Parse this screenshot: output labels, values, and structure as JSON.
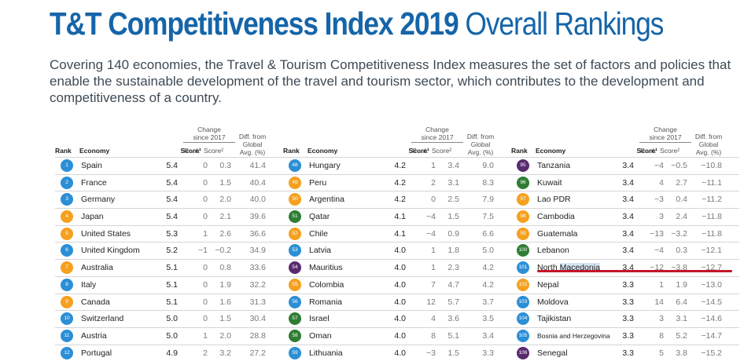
{
  "title": {
    "bold": "T&T Competitiveness Index 2019",
    "light": "Overall Rankings"
  },
  "intro": "Covering 140 economies, the Travel & Tourism Competitiveness Index measures the set of factors and policies that enable the sustainable development of the travel and tourism sector, which contributes to the development and competitiveness of a country.",
  "headers": {
    "rank": "Rank",
    "economy": "Economy",
    "score": "Score¹",
    "change_line1": "Change",
    "change_line2": "since 2017",
    "change_rank": "Rank",
    "change_score": "Score²",
    "diff_line1": "Diff. from",
    "diff_line2": "Global",
    "diff_line3": "Avg. (%)"
  },
  "colors": {
    "blue": "#2b8fd6",
    "orange": "#f5a01e",
    "green": "#2e7d32",
    "purple": "#5a2a6e",
    "title": "#1565a8",
    "marker": "#c4162a"
  },
  "columns": [
    {
      "rows": [
        {
          "rank": "1",
          "economy": "Spain",
          "score": "5.4",
          "chg_rank": "0",
          "chg_score": "0.3",
          "diff": "41.4",
          "color": "#2b8fd6"
        },
        {
          "rank": "2",
          "economy": "France",
          "score": "5.4",
          "chg_rank": "0",
          "chg_score": "1.5",
          "diff": "40.4",
          "color": "#2b8fd6"
        },
        {
          "rank": "3",
          "economy": "Germany",
          "score": "5.4",
          "chg_rank": "0",
          "chg_score": "2.0",
          "diff": "40.0",
          "color": "#2b8fd6"
        },
        {
          "rank": "4",
          "economy": "Japan",
          "score": "5.4",
          "chg_rank": "0",
          "chg_score": "2.1",
          "diff": "39.6",
          "color": "#f5a01e"
        },
        {
          "rank": "5",
          "economy": "United States",
          "score": "5.3",
          "chg_rank": "1",
          "chg_score": "2.6",
          "diff": "36.6",
          "color": "#f5a01e"
        },
        {
          "rank": "6",
          "economy": "United Kingdom",
          "score": "5.2",
          "chg_rank": "−1",
          "chg_score": "−0.2",
          "diff": "34.9",
          "color": "#2b8fd6"
        },
        {
          "rank": "7",
          "economy": "Australia",
          "score": "5.1",
          "chg_rank": "0",
          "chg_score": "0.8",
          "diff": "33.6",
          "color": "#f5a01e"
        },
        {
          "rank": "8",
          "economy": "Italy",
          "score": "5.1",
          "chg_rank": "0",
          "chg_score": "1.9",
          "diff": "32.2",
          "color": "#2b8fd6"
        },
        {
          "rank": "9",
          "economy": "Canada",
          "score": "5.1",
          "chg_rank": "0",
          "chg_score": "1.6",
          "diff": "31.3",
          "color": "#f5a01e"
        },
        {
          "rank": "10",
          "economy": "Switzerland",
          "score": "5.0",
          "chg_rank": "0",
          "chg_score": "1.5",
          "diff": "30.4",
          "color": "#2b8fd6"
        },
        {
          "rank": "11",
          "economy": "Austria",
          "score": "5.0",
          "chg_rank": "1",
          "chg_score": "2.0",
          "diff": "28.8",
          "color": "#2b8fd6"
        },
        {
          "rank": "12",
          "economy": "Portugal",
          "score": "4.9",
          "chg_rank": "2",
          "chg_score": "3.2",
          "diff": "27.2",
          "color": "#2b8fd6"
        }
      ]
    },
    {
      "rows": [
        {
          "rank": "48",
          "economy": "Hungary",
          "score": "4.2",
          "chg_rank": "1",
          "chg_score": "3.4",
          "diff": "9.0",
          "color": "#2b8fd6"
        },
        {
          "rank": "49",
          "economy": "Peru",
          "score": "4.2",
          "chg_rank": "2",
          "chg_score": "3.1",
          "diff": "8.3",
          "color": "#f5a01e"
        },
        {
          "rank": "50",
          "economy": "Argentina",
          "score": "4.2",
          "chg_rank": "0",
          "chg_score": "2.5",
          "diff": "7.9",
          "color": "#f5a01e"
        },
        {
          "rank": "51",
          "economy": "Qatar",
          "score": "4.1",
          "chg_rank": "−4",
          "chg_score": "1.5",
          "diff": "7.5",
          "color": "#2e7d32"
        },
        {
          "rank": "52",
          "economy": "Chile",
          "score": "4.1",
          "chg_rank": "−4",
          "chg_score": "0.9",
          "diff": "6.6",
          "color": "#f5a01e"
        },
        {
          "rank": "53",
          "economy": "Latvia",
          "score": "4.0",
          "chg_rank": "1",
          "chg_score": "1.8",
          "diff": "5.0",
          "color": "#2b8fd6"
        },
        {
          "rank": "54",
          "economy": "Mauritius",
          "score": "4.0",
          "chg_rank": "1",
          "chg_score": "2.3",
          "diff": "4.2",
          "color": "#5a2a6e"
        },
        {
          "rank": "55",
          "economy": "Colombia",
          "score": "4.0",
          "chg_rank": "7",
          "chg_score": "4.7",
          "diff": "4.2",
          "color": "#f5a01e"
        },
        {
          "rank": "56",
          "economy": "Romania",
          "score": "4.0",
          "chg_rank": "12",
          "chg_score": "5.7",
          "diff": "3.7",
          "color": "#2b8fd6"
        },
        {
          "rank": "57",
          "economy": "Israel",
          "score": "4.0",
          "chg_rank": "4",
          "chg_score": "3.6",
          "diff": "3.5",
          "color": "#2e7d32"
        },
        {
          "rank": "58",
          "economy": "Oman",
          "score": "4.0",
          "chg_rank": "8",
          "chg_score": "5.1",
          "diff": "3.4",
          "color": "#2e7d32"
        },
        {
          "rank": "59",
          "economy": "Lithuania",
          "score": "4.0",
          "chg_rank": "−3",
          "chg_score": "1.5",
          "diff": "3.3",
          "color": "#2b8fd6"
        }
      ]
    },
    {
      "rows": [
        {
          "rank": "95",
          "economy": "Tanzania",
          "score": "3.4",
          "chg_rank": "−4",
          "chg_score": "−0.5",
          "diff": "−10.8",
          "color": "#5a2a6e"
        },
        {
          "rank": "96",
          "economy": "Kuwait",
          "score": "3.4",
          "chg_rank": "4",
          "chg_score": "2.7",
          "diff": "−11.1",
          "color": "#2e7d32"
        },
        {
          "rank": "97",
          "economy": "Lao PDR",
          "score": "3.4",
          "chg_rank": "−3",
          "chg_score": "0.4",
          "diff": "−11.2",
          "color": "#f5a01e"
        },
        {
          "rank": "98",
          "economy": "Cambodia",
          "score": "3.4",
          "chg_rank": "3",
          "chg_score": "2.4",
          "diff": "−11.8",
          "color": "#f5a01e"
        },
        {
          "rank": "99",
          "economy": "Guatemala",
          "score": "3.4",
          "chg_rank": "−13",
          "chg_score": "−3.2",
          "diff": "−11.8",
          "color": "#f5a01e"
        },
        {
          "rank": "100",
          "economy": "Lebanon",
          "score": "3.4",
          "chg_rank": "−4",
          "chg_score": "0.3",
          "diff": "−12.1",
          "color": "#2e7d32"
        },
        {
          "rank": "101",
          "economy_prefix": "North ",
          "economy_highlight": "Macedonia",
          "economy": "",
          "score": "3.4",
          "chg_rank": "−12",
          "chg_score": "−3.8",
          "diff": "−12.7",
          "color": "#2b8fd6"
        },
        {
          "rank": "102",
          "economy": "Nepal",
          "score": "3.3",
          "chg_rank": "1",
          "chg_score": "1.9",
          "diff": "−13.0",
          "color": "#f5a01e"
        },
        {
          "rank": "103",
          "economy": "Moldova",
          "score": "3.3",
          "chg_rank": "14",
          "chg_score": "6.4",
          "diff": "−14.5",
          "color": "#2b8fd6"
        },
        {
          "rank": "104",
          "economy": "Tajikistan",
          "score": "3.3",
          "chg_rank": "3",
          "chg_score": "3.1",
          "diff": "−14.6",
          "color": "#2b8fd6"
        },
        {
          "rank": "105",
          "economy": "Bosnia and Herzegovina",
          "score": "3.3",
          "chg_rank": "8",
          "chg_score": "5.2",
          "diff": "−14.7",
          "color": "#2b8fd6",
          "small": true
        },
        {
          "rank": "106",
          "economy": "Senegal",
          "score": "3.3",
          "chg_rank": "5",
          "chg_score": "3.8",
          "diff": "−15.2",
          "color": "#5a2a6e"
        }
      ]
    }
  ]
}
